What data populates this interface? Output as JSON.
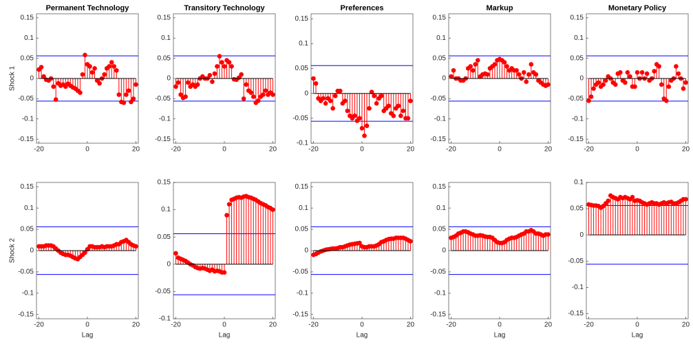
{
  "chart_data": [
    {
      "type": "stem",
      "title": "Permanent  Technology",
      "ylabel": "Shock 1",
      "xlim": [
        -21,
        21
      ],
      "xticks": [
        -20,
        0,
        20
      ],
      "ylim": [
        -0.16,
        0.16
      ],
      "yticks": [
        -0.15,
        -0.1,
        -0.05,
        0,
        0.05,
        0.1,
        0.15
      ],
      "bands": [
        0.056,
        -0.056
      ],
      "color": "#ff0000",
      "band_color": "#0000ff",
      "x": [
        -20,
        -19,
        -18,
        -17,
        -16,
        -15,
        -14,
        -13,
        -12,
        -11,
        -10,
        -9,
        -8,
        -7,
        -6,
        -5,
        -4,
        -3,
        -2,
        -1,
        0,
        1,
        2,
        3,
        4,
        5,
        6,
        7,
        8,
        9,
        10,
        11,
        12,
        13,
        14,
        15,
        16,
        17,
        18,
        19,
        20
      ],
      "values": [
        0.022,
        0.028,
        0.005,
        -0.003,
        -0.005,
        0.0,
        -0.02,
        -0.052,
        -0.012,
        -0.018,
        -0.015,
        -0.02,
        -0.013,
        -0.018,
        -0.022,
        -0.025,
        -0.03,
        -0.035,
        0.01,
        0.058,
        0.035,
        0.03,
        0.015,
        0.025,
        -0.005,
        -0.012,
        0.0,
        0.01,
        0.025,
        0.03,
        0.04,
        0.03,
        0.02,
        -0.04,
        -0.058,
        -0.06,
        -0.04,
        -0.03,
        -0.058,
        -0.05,
        -0.015
      ]
    },
    {
      "type": "stem",
      "title": "Transitory  Technology",
      "xlim": [
        -21,
        21
      ],
      "xticks": [
        -20,
        0,
        20
      ],
      "ylim": [
        -0.16,
        0.16
      ],
      "yticks": [
        -0.15,
        -0.1,
        -0.05,
        0,
        0.05,
        0.1,
        0.15
      ],
      "bands": [
        0.056,
        -0.056
      ],
      "color": "#ff0000",
      "band_color": "#0000ff",
      "x": [
        -20,
        -19,
        -18,
        -17,
        -16,
        -15,
        -14,
        -13,
        -12,
        -11,
        -10,
        -9,
        -8,
        -7,
        -6,
        -5,
        -4,
        -3,
        -2,
        -1,
        0,
        1,
        2,
        3,
        4,
        5,
        6,
        7,
        8,
        9,
        10,
        11,
        12,
        13,
        14,
        15,
        16,
        17,
        18,
        19,
        20
      ],
      "values": [
        -0.02,
        -0.01,
        -0.04,
        -0.048,
        -0.045,
        -0.01,
        -0.02,
        -0.015,
        -0.02,
        -0.015,
        0.0,
        0.005,
        0.0,
        0.0,
        0.008,
        -0.008,
        0.012,
        0.03,
        0.055,
        0.04,
        0.03,
        0.045,
        0.04,
        0.03,
        -0.002,
        -0.003,
        0.002,
        0.01,
        -0.05,
        -0.015,
        -0.03,
        -0.035,
        -0.045,
        -0.06,
        -0.055,
        -0.045,
        -0.04,
        -0.03,
        -0.04,
        -0.035,
        -0.04
      ]
    },
    {
      "type": "stem",
      "title": "Preferences",
      "xlim": [
        -21,
        21
      ],
      "xticks": [
        -20,
        0,
        20
      ],
      "ylim": [
        -0.1,
        0.16
      ],
      "yticks": [
        -0.1,
        -0.05,
        0,
        0.05,
        0.1,
        0.15
      ],
      "bands": [
        0.056,
        -0.056
      ],
      "color": "#ff0000",
      "band_color": "#0000ff",
      "x": [
        -20,
        -19,
        -18,
        -17,
        -16,
        -15,
        -14,
        -13,
        -12,
        -11,
        -10,
        -9,
        -8,
        -7,
        -6,
        -5,
        -4,
        -3,
        -2,
        -1,
        0,
        1,
        2,
        3,
        4,
        5,
        6,
        7,
        8,
        9,
        10,
        11,
        12,
        13,
        14,
        15,
        16,
        17,
        18,
        19,
        20
      ],
      "values": [
        0.03,
        0.02,
        -0.01,
        -0.015,
        -0.01,
        -0.02,
        -0.01,
        -0.015,
        -0.03,
        -0.005,
        0.005,
        0.005,
        -0.02,
        -0.015,
        -0.035,
        -0.045,
        -0.05,
        -0.045,
        -0.055,
        -0.05,
        -0.07,
        -0.085,
        -0.065,
        -0.03,
        0.003,
        -0.005,
        -0.02,
        -0.01,
        -0.005,
        -0.035,
        -0.03,
        -0.025,
        -0.04,
        -0.045,
        -0.03,
        -0.025,
        -0.045,
        -0.035,
        -0.05,
        -0.05,
        -0.015
      ]
    },
    {
      "type": "stem",
      "title": "Markup",
      "xlim": [
        -21,
        21
      ],
      "xticks": [
        -20,
        0,
        20
      ],
      "ylim": [
        -0.16,
        0.16
      ],
      "yticks": [
        -0.15,
        -0.1,
        -0.05,
        0,
        0.05,
        0.1,
        0.15
      ],
      "bands": [
        0.056,
        -0.056
      ],
      "color": "#ff0000",
      "band_color": "#0000ff",
      "x": [
        -20,
        -19,
        -18,
        -17,
        -16,
        -15,
        -14,
        -13,
        -12,
        -11,
        -10,
        -9,
        -8,
        -7,
        -6,
        -5,
        -4,
        -3,
        -2,
        -1,
        0,
        1,
        2,
        3,
        4,
        5,
        6,
        7,
        8,
        9,
        10,
        11,
        12,
        13,
        14,
        15,
        16,
        17,
        18,
        19,
        20
      ],
      "values": [
        0.005,
        0.02,
        0.0,
        0.0,
        -0.005,
        -0.005,
        0.0,
        0.025,
        0.03,
        0.02,
        0.035,
        0.045,
        0.005,
        0.01,
        0.012,
        0.01,
        0.025,
        0.03,
        0.035,
        0.045,
        0.048,
        0.045,
        0.04,
        0.03,
        0.02,
        0.025,
        0.02,
        0.02,
        0.01,
        0.0,
        0.015,
        -0.008,
        0.01,
        0.035,
        0.015,
        0.01,
        -0.005,
        -0.01,
        -0.015,
        -0.018,
        -0.015
      ]
    },
    {
      "type": "stem",
      "title": "Monetary Policy",
      "xlim": [
        -21,
        21
      ],
      "xticks": [
        -20,
        0,
        20
      ],
      "ylim": [
        -0.16,
        0.16
      ],
      "yticks": [
        -0.15,
        -0.1,
        -0.05,
        0,
        0.05,
        0.1,
        0.15
      ],
      "bands": [
        0.056,
        -0.056
      ],
      "color": "#ff0000",
      "band_color": "#0000ff",
      "x": [
        -20,
        -19,
        -18,
        -17,
        -16,
        -15,
        -14,
        -13,
        -12,
        -11,
        -10,
        -9,
        -8,
        -7,
        -6,
        -5,
        -4,
        -3,
        -2,
        -1,
        0,
        1,
        2,
        3,
        4,
        5,
        6,
        7,
        8,
        9,
        10,
        11,
        12,
        13,
        14,
        15,
        16,
        17,
        18,
        19,
        20
      ],
      "values": [
        -0.055,
        -0.045,
        -0.025,
        -0.015,
        -0.01,
        -0.02,
        -0.015,
        -0.005,
        0.005,
        0.0,
        -0.01,
        -0.015,
        0.012,
        0.015,
        -0.005,
        -0.01,
        0.015,
        0.005,
        -0.02,
        -0.02,
        0.015,
        0.0,
        0.015,
        0.0,
        0.012,
        -0.005,
        0.0,
        0.018,
        0.035,
        0.03,
        -0.015,
        -0.05,
        -0.055,
        -0.02,
        -0.005,
        0.0,
        0.03,
        0.012,
        0.0,
        -0.025,
        -0.01
      ]
    },
    {
      "type": "stem",
      "ylabel": "Shock 2",
      "xlabel": "Lag",
      "xlim": [
        -21,
        21
      ],
      "xticks": [
        -20,
        0,
        20
      ],
      "ylim": [
        -0.16,
        0.16
      ],
      "yticks": [
        -0.15,
        -0.1,
        -0.05,
        0,
        0.05,
        0.1,
        0.15
      ],
      "bands": [
        0.056,
        -0.056
      ],
      "color": "#ff0000",
      "band_color": "#0000ff",
      "x": [
        -20,
        -19,
        -18,
        -17,
        -16,
        -15,
        -14,
        -13,
        -12,
        -11,
        -10,
        -9,
        -8,
        -7,
        -6,
        -5,
        -4,
        -3,
        -2,
        -1,
        0,
        1,
        2,
        3,
        4,
        5,
        6,
        7,
        8,
        9,
        10,
        11,
        12,
        13,
        14,
        15,
        16,
        17,
        18,
        19,
        20
      ],
      "values": [
        0.01,
        0.01,
        0.01,
        0.012,
        0.012,
        0.012,
        0.01,
        0.005,
        0.0,
        -0.005,
        -0.008,
        -0.01,
        -0.01,
        -0.012,
        -0.015,
        -0.018,
        -0.02,
        -0.015,
        -0.01,
        -0.005,
        0.003,
        0.01,
        0.01,
        0.008,
        0.008,
        0.008,
        0.01,
        0.008,
        0.01,
        0.01,
        0.01,
        0.012,
        0.015,
        0.015,
        0.02,
        0.022,
        0.025,
        0.02,
        0.015,
        0.012,
        0.01
      ]
    },
    {
      "type": "stem",
      "xlabel": "Lag",
      "xlim": [
        -21,
        21
      ],
      "xticks": [
        -20,
        0,
        20
      ],
      "ylim": [
        -0.1,
        0.15
      ],
      "yticks": [
        -0.1,
        -0.05,
        0,
        0.05,
        0.1,
        0.15
      ],
      "bands": [
        0.056,
        -0.056
      ],
      "color": "#ff0000",
      "band_color": "#0000ff",
      "x": [
        -20,
        -19,
        -18,
        -17,
        -16,
        -15,
        -14,
        -13,
        -12,
        -11,
        -10,
        -9,
        -8,
        -7,
        -6,
        -5,
        -4,
        -3,
        -2,
        -1,
        0,
        1,
        2,
        3,
        4,
        5,
        6,
        7,
        8,
        9,
        10,
        11,
        12,
        13,
        14,
        15,
        16,
        17,
        18,
        19,
        20
      ],
      "values": [
        0.02,
        0.012,
        0.01,
        0.008,
        0.006,
        0.003,
        0.0,
        -0.002,
        -0.005,
        -0.007,
        -0.008,
        -0.007,
        -0.008,
        -0.01,
        -0.012,
        -0.01,
        -0.013,
        -0.012,
        -0.013,
        -0.015,
        -0.015,
        0.09,
        0.11,
        0.118,
        0.12,
        0.122,
        0.123,
        0.122,
        0.124,
        0.125,
        0.123,
        0.122,
        0.12,
        0.118,
        0.115,
        0.112,
        0.11,
        0.108,
        0.105,
        0.103,
        0.1
      ]
    },
    {
      "type": "stem",
      "xlabel": "Lag",
      "xlim": [
        -21,
        21
      ],
      "xticks": [
        -20,
        0,
        20
      ],
      "ylim": [
        -0.16,
        0.16
      ],
      "yticks": [
        -0.15,
        -0.1,
        -0.05,
        0,
        0.05,
        0.1,
        0.15
      ],
      "bands": [
        0.056,
        -0.056
      ],
      "color": "#ff0000",
      "band_color": "#0000ff",
      "x": [
        -20,
        -19,
        -18,
        -17,
        -16,
        -15,
        -14,
        -13,
        -12,
        -11,
        -10,
        -9,
        -8,
        -7,
        -6,
        -5,
        -4,
        -3,
        -2,
        -1,
        0,
        1,
        2,
        3,
        4,
        5,
        6,
        7,
        8,
        9,
        10,
        11,
        12,
        13,
        14,
        15,
        16,
        17,
        18,
        19,
        20
      ],
      "values": [
        -0.01,
        -0.008,
        -0.005,
        -0.002,
        0.0,
        0.002,
        0.003,
        0.004,
        0.005,
        0.005,
        0.006,
        0.008,
        0.008,
        0.01,
        0.012,
        0.014,
        0.015,
        0.016,
        0.017,
        0.018,
        0.01,
        0.008,
        0.008,
        0.01,
        0.01,
        0.01,
        0.012,
        0.015,
        0.02,
        0.022,
        0.025,
        0.027,
        0.028,
        0.028,
        0.03,
        0.03,
        0.03,
        0.03,
        0.028,
        0.025,
        0.022
      ]
    },
    {
      "type": "stem",
      "xlabel": "Lag",
      "xlim": [
        -21,
        21
      ],
      "xticks": [
        -20,
        0,
        20
      ],
      "ylim": [
        -0.16,
        0.16
      ],
      "yticks": [
        -0.15,
        -0.1,
        -0.05,
        0,
        0.05,
        0.1,
        0.15
      ],
      "bands": [
        0.056,
        -0.056
      ],
      "color": "#ff0000",
      "band_color": "#0000ff",
      "x": [
        -20,
        -19,
        -18,
        -17,
        -16,
        -15,
        -14,
        -13,
        -12,
        -11,
        -10,
        -9,
        -8,
        -7,
        -6,
        -5,
        -4,
        -3,
        -2,
        -1,
        0,
        1,
        2,
        3,
        4,
        5,
        6,
        7,
        8,
        9,
        10,
        11,
        12,
        13,
        14,
        15,
        16,
        17,
        18,
        19,
        20
      ],
      "values": [
        0.03,
        0.032,
        0.035,
        0.04,
        0.042,
        0.045,
        0.045,
        0.043,
        0.04,
        0.038,
        0.035,
        0.035,
        0.036,
        0.035,
        0.033,
        0.032,
        0.032,
        0.03,
        0.025,
        0.02,
        0.018,
        0.018,
        0.02,
        0.025,
        0.028,
        0.03,
        0.03,
        0.032,
        0.035,
        0.038,
        0.04,
        0.045,
        0.045,
        0.048,
        0.045,
        0.04,
        0.04,
        0.038,
        0.035,
        0.038,
        0.038
      ]
    },
    {
      "type": "stem",
      "xlabel": "Lag",
      "xlim": [
        -21,
        21
      ],
      "xticks": [
        -20,
        0,
        20
      ],
      "ylim": [
        -0.16,
        0.1
      ],
      "yticks": [
        -0.15,
        -0.1,
        -0.05,
        0,
        0.05,
        0.1
      ],
      "bands": [
        0.056,
        -0.056
      ],
      "color": "#ff0000",
      "band_color": "#0000ff",
      "x": [
        -20,
        -19,
        -18,
        -17,
        -16,
        -15,
        -14,
        -13,
        -12,
        -11,
        -10,
        -9,
        -8,
        -7,
        -6,
        -5,
        -4,
        -3,
        -2,
        -1,
        0,
        1,
        2,
        3,
        4,
        5,
        6,
        7,
        8,
        9,
        10,
        11,
        12,
        13,
        14,
        15,
        16,
        17,
        18,
        19,
        20
      ],
      "values": [
        0.058,
        0.057,
        0.056,
        0.056,
        0.055,
        0.052,
        0.055,
        0.06,
        0.065,
        0.075,
        0.072,
        0.07,
        0.068,
        0.072,
        0.07,
        0.072,
        0.07,
        0.068,
        0.072,
        0.065,
        0.066,
        0.065,
        0.062,
        0.06,
        0.058,
        0.06,
        0.062,
        0.06,
        0.06,
        0.058,
        0.06,
        0.062,
        0.06,
        0.062,
        0.063,
        0.06,
        0.06,
        0.062,
        0.065,
        0.068,
        0.068
      ]
    }
  ]
}
